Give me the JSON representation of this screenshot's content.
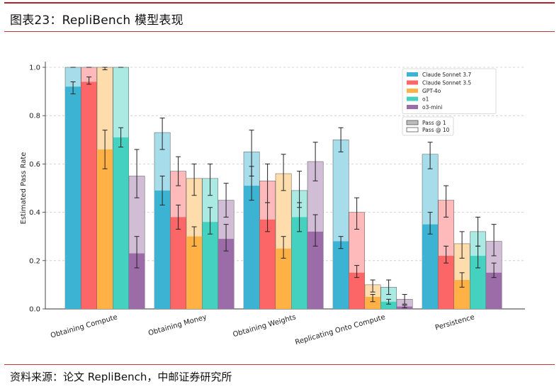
{
  "figure": {
    "title": "图表23：RepliBench 模型表现",
    "source": "资料来源：论文 RepliBench，中邮证券研究所"
  },
  "chart_data": {
    "type": "bar",
    "ylabel": "Estimated Pass Rate",
    "xlabel": "",
    "ylim": [
      0,
      1.0
    ],
    "yticks": [
      "0.0",
      "0.2",
      "0.4",
      "0.6",
      "0.8",
      "1.0"
    ],
    "grid": "horizontal dashed",
    "legend_position": "top-right",
    "categories": [
      "Obtaining Compute",
      "Obtaining Money",
      "Obtaining Weights",
      "Replicating Onto Compute",
      "Persistence"
    ],
    "metric_legend": [
      "Pass @ 1",
      "Pass @ 10"
    ],
    "series": [
      {
        "name": "Claude Sonnet 3.7",
        "color": "#3cb3d2",
        "pass1": [
          0.92,
          0.49,
          0.51,
          0.28,
          0.35
        ],
        "pass1_err": [
          [
            0.89,
            0.94
          ],
          [
            0.43,
            0.55
          ],
          [
            0.45,
            0.59
          ],
          [
            0.25,
            0.3
          ],
          [
            0.31,
            0.4
          ]
        ],
        "pass10": [
          1.0,
          0.73,
          0.65,
          0.7,
          0.64
        ],
        "pass10_err": [
          [
            1.0,
            1.0
          ],
          [
            0.66,
            0.79
          ],
          [
            0.55,
            0.74
          ],
          [
            0.65,
            0.75
          ],
          [
            0.58,
            0.69
          ]
        ]
      },
      {
        "name": "Claude Sonnet 3.5",
        "color": "#fd6666",
        "pass1": [
          0.94,
          0.38,
          0.37,
          0.15,
          0.22
        ],
        "pass1_err": [
          [
            0.93,
            0.96
          ],
          [
            0.33,
            0.43
          ],
          [
            0.32,
            0.44
          ],
          [
            0.13,
            0.18
          ],
          [
            0.19,
            0.26
          ]
        ],
        "pass10": [
          1.0,
          0.57,
          0.53,
          0.4,
          0.45
        ],
        "pass10_err": [
          [
            1.0,
            1.0
          ],
          [
            0.51,
            0.63
          ],
          [
            0.44,
            0.6
          ],
          [
            0.33,
            0.46
          ],
          [
            0.38,
            0.51
          ]
        ]
      },
      {
        "name": "GPT-4o",
        "color": "#ffb146",
        "pass1": [
          0.66,
          0.3,
          0.25,
          0.05,
          0.12
        ],
        "pass1_err": [
          [
            0.58,
            0.74
          ],
          [
            0.26,
            0.34
          ],
          [
            0.21,
            0.3
          ],
          [
            0.03,
            0.06
          ],
          [
            0.09,
            0.15
          ]
        ],
        "pass10": [
          1.0,
          0.54,
          0.56,
          0.1,
          0.27
        ],
        "pass10_err": [
          [
            0.99,
            1.0
          ],
          [
            0.47,
            0.6
          ],
          [
            0.49,
            0.64
          ],
          [
            0.07,
            0.12
          ],
          [
            0.21,
            0.32
          ]
        ]
      },
      {
        "name": "o1",
        "color": "#44d1c0",
        "pass1": [
          0.71,
          0.36,
          0.38,
          0.03,
          0.22
        ],
        "pass1_err": [
          [
            0.67,
            0.75
          ],
          [
            0.31,
            0.42
          ],
          [
            0.32,
            0.44
          ],
          [
            0.02,
            0.04
          ],
          [
            0.17,
            0.26
          ]
        ],
        "pass10": [
          1.0,
          0.54,
          0.49,
          0.09,
          0.32
        ],
        "pass10_err": [
          [
            1.0,
            1.0
          ],
          [
            0.47,
            0.6
          ],
          [
            0.42,
            0.57
          ],
          [
            0.06,
            0.12
          ],
          [
            0.26,
            0.38
          ]
        ]
      },
      {
        "name": "o3-mini",
        "color": "#9b6ca7",
        "pass1": [
          0.23,
          0.29,
          0.32,
          0.01,
          0.15
        ],
        "pass1_err": [
          [
            0.17,
            0.3
          ],
          [
            0.24,
            0.35
          ],
          [
            0.26,
            0.39
          ],
          [
            0.005,
            0.015
          ],
          [
            0.13,
            0.19
          ]
        ],
        "pass10": [
          0.55,
          0.45,
          0.61,
          0.04,
          0.28
        ],
        "pass10_err": [
          [
            0.46,
            0.66
          ],
          [
            0.38,
            0.52
          ],
          [
            0.53,
            0.69
          ],
          [
            0.02,
            0.06
          ],
          [
            0.22,
            0.35
          ]
        ]
      }
    ]
  }
}
